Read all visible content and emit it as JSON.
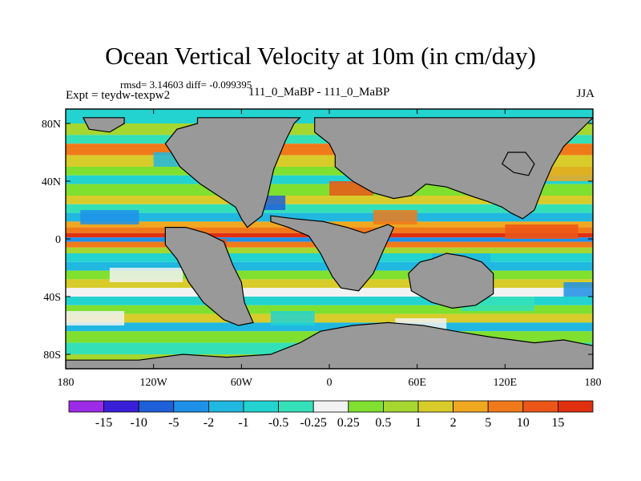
{
  "chart_data": {
    "type": "heatmap",
    "title": "Ocean Vertical Velocity at 10m (in cm/day)",
    "stats_text": "rmsd= 3.14603 diff= -0.099395",
    "left_label": "Expt = teydw-texpw2",
    "center_label": "111_0_MaBP - 111_0_MaBP",
    "season": "JJA",
    "x_ticks": [
      "180",
      "120W",
      "60W",
      "0",
      "60E",
      "120E",
      "180"
    ],
    "x_tick_values": [
      -180,
      -120,
      -60,
      0,
      60,
      120,
      180
    ],
    "y_ticks": [
      "80N",
      "40N",
      "0",
      "40S",
      "80S"
    ],
    "y_tick_values": [
      80,
      40,
      0,
      -40,
      -80
    ],
    "xlim": [
      -180,
      180
    ],
    "ylim": [
      -90,
      90
    ],
    "colorbar_levels": [
      "-15",
      "-10",
      "-5",
      "-2",
      "-1",
      "-0.5",
      "-0.25",
      "0.25",
      "0.5",
      "1",
      "2",
      "5",
      "10",
      "15"
    ],
    "colorbar_colors": [
      "#9b2be6",
      "#3a1fd8",
      "#1f5fd8",
      "#1e90e8",
      "#20b8e0",
      "#22d3d0",
      "#34e0b8",
      "#f2f2f2",
      "#7fe030",
      "#a6d630",
      "#d8cc2a",
      "#f0a820",
      "#f07a1a",
      "#ec5618",
      "#e03010"
    ],
    "land_color": "#999999",
    "land_note": "grey = land (no data)"
  }
}
